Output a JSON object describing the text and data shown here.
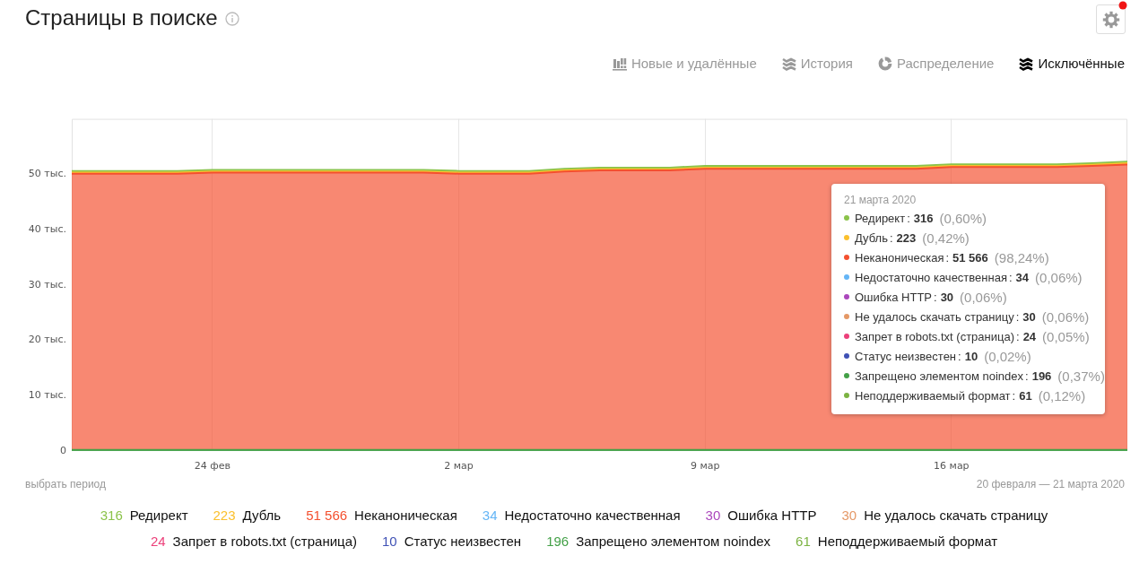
{
  "chart_data": {
    "type": "area",
    "title": "Страницы в поиске",
    "stacked": true,
    "grid": "x",
    "legend": "bottom",
    "x": [
      "2020-02-20",
      "2020-02-21",
      "2020-02-22",
      "2020-02-23",
      "2020-02-24",
      "2020-02-25",
      "2020-02-26",
      "2020-02-27",
      "2020-02-28",
      "2020-02-29",
      "2020-03-01",
      "2020-03-02",
      "2020-03-03",
      "2020-03-04",
      "2020-03-05",
      "2020-03-06",
      "2020-03-07",
      "2020-03-08",
      "2020-03-09",
      "2020-03-10",
      "2020-03-11",
      "2020-03-12",
      "2020-03-13",
      "2020-03-14",
      "2020-03-15",
      "2020-03-16",
      "2020-03-17",
      "2020-03-18",
      "2020-03-19",
      "2020-03-20",
      "2020-03-21"
    ],
    "xlim": [
      "2020-02-20",
      "2020-03-21"
    ],
    "xticks": [
      {
        "value": "2020-02-24",
        "label": "24 фев"
      },
      {
        "value": "2020-03-02",
        "label": "2 мар"
      },
      {
        "value": "2020-03-09",
        "label": "9 мар"
      },
      {
        "value": "2020-03-16",
        "label": "16 мар"
      }
    ],
    "ylim": [
      0,
      60
    ],
    "yticks": [
      0,
      {
        "value": 10,
        "label": "10 тыс."
      },
      {
        "value": 20,
        "label": "20 тыс."
      },
      {
        "value": 30,
        "label": "30 тыс."
      },
      {
        "value": 40,
        "label": "40 тыс."
      },
      {
        "value": 50,
        "label": "50 тыс."
      }
    ],
    "series": [
      {
        "name": "Неподдерживаемый формат",
        "color": "#7cb342",
        "values": [
          null,
          null,
          null,
          null,
          null,
          null,
          null,
          null,
          null,
          null,
          null,
          null,
          null,
          null,
          null,
          null,
          null,
          null,
          null,
          null,
          null,
          null,
          null,
          null,
          null,
          null,
          null,
          null,
          null,
          null,
          null
        ]
      },
      {
        "name": "Запрещено элементом noindex",
        "color": "#43a047",
        "values": [
          0.2,
          0.2,
          0.2,
          0.2,
          0.2,
          0.2,
          0.2,
          0.2,
          0.2,
          0.2,
          0.2,
          0.2,
          0.2,
          0.2,
          0.2,
          0.2,
          0.2,
          0.2,
          0.2,
          0.2,
          0.2,
          0.2,
          0.2,
          0.2,
          0.2,
          0.2,
          0.2,
          0.2,
          0.2,
          0.2,
          0.196
        ]
      },
      {
        "name": "Статус неизвестен",
        "color": "#3f51b5",
        "values": [
          null,
          null,
          null,
          null,
          null,
          null,
          null,
          null,
          null,
          null,
          null,
          null,
          null,
          null,
          null,
          null,
          null,
          null,
          null,
          null,
          null,
          null,
          null,
          null,
          null,
          null,
          null,
          null,
          null,
          null,
          null
        ]
      },
      {
        "name": "Запрет в robots.txt (страница)",
        "color": "#ec407a",
        "values": [
          null,
          null,
          null,
          null,
          null,
          null,
          null,
          null,
          null,
          null,
          null,
          null,
          null,
          null,
          null,
          null,
          null,
          null,
          null,
          null,
          null,
          null,
          null,
          null,
          null,
          null,
          null,
          null,
          null,
          null,
          null
        ]
      },
      {
        "name": "Не удалось скачать страницу",
        "color": "#e59866",
        "values": [
          null,
          null,
          null,
          null,
          null,
          null,
          null,
          null,
          null,
          null,
          null,
          null,
          null,
          null,
          null,
          null,
          null,
          null,
          null,
          null,
          null,
          null,
          null,
          null,
          null,
          null,
          null,
          null,
          null,
          null,
          null
        ]
      },
      {
        "name": "Ошибка HTTP",
        "color": "#ab47bc",
        "values": [
          null,
          null,
          null,
          null,
          null,
          null,
          null,
          null,
          null,
          null,
          null,
          null,
          null,
          null,
          null,
          null,
          null,
          null,
          null,
          null,
          null,
          null,
          null,
          null,
          null,
          null,
          null,
          null,
          null,
          null,
          null
        ]
      },
      {
        "name": "Недостаточно качественная",
        "color": "#64b5f6",
        "values": [
          null,
          null,
          null,
          null,
          null,
          null,
          null,
          null,
          null,
          null,
          null,
          null,
          null,
          null,
          null,
          null,
          null,
          null,
          null,
          null,
          null,
          null,
          null,
          null,
          null,
          null,
          null,
          null,
          null,
          null,
          null
        ]
      },
      {
        "name": "Неканоническая",
        "color": "#f4502f",
        "values": [
          49.9,
          49.9,
          49.9,
          49.9,
          50.1,
          50.1,
          50.1,
          50.1,
          50.1,
          50.1,
          50.1,
          49.9,
          49.9,
          49.9,
          50.3,
          50.5,
          50.5,
          50.5,
          50.8,
          50.8,
          50.8,
          50.8,
          50.8,
          50.8,
          50.8,
          51.1,
          51.1,
          51.1,
          51.1,
          51.3,
          51.566
        ]
      },
      {
        "name": "Дубль",
        "color": "#fbc02d",
        "values": [
          0.2,
          0.2,
          0.2,
          0.2,
          0.2,
          0.2,
          0.2,
          0.2,
          0.2,
          0.2,
          0.2,
          0.2,
          0.2,
          0.2,
          0.2,
          0.2,
          0.2,
          0.2,
          0.2,
          0.2,
          0.2,
          0.2,
          0.2,
          0.2,
          0.2,
          0.2,
          0.2,
          0.2,
          0.2,
          0.2,
          0.223
        ]
      },
      {
        "name": "Редирект",
        "color": "#8bc34a",
        "values": [
          0.3,
          0.3,
          0.3,
          0.3,
          0.3,
          0.3,
          0.3,
          0.3,
          0.3,
          0.3,
          0.3,
          0.3,
          0.3,
          0.3,
          0.3,
          0.3,
          0.3,
          0.3,
          0.3,
          0.3,
          0.3,
          0.3,
          0.3,
          0.3,
          0.3,
          0.3,
          0.3,
          0.3,
          0.3,
          0.3,
          0.316
        ]
      }
    ],
    "annotations": [
      "Новые и удалённые",
      "История",
      "Распределение",
      "Исключённые",
      "выбрать период",
      "20 февраля — 21 марта 2020",
      "21 марта 2020",
      "316",
      "223",
      "51 566",
      "34",
      "30",
      "30",
      "24",
      "10",
      "196",
      "61",
      "(0,60%)",
      "(0,42%)",
      "(98,24%)",
      "(0,06%)",
      "(0,06%)",
      "(0,06%)",
      "(0,05%)",
      "(0,02%)",
      "(0,37%)",
      "(0,12%)",
      ":"
    ]
  }
}
